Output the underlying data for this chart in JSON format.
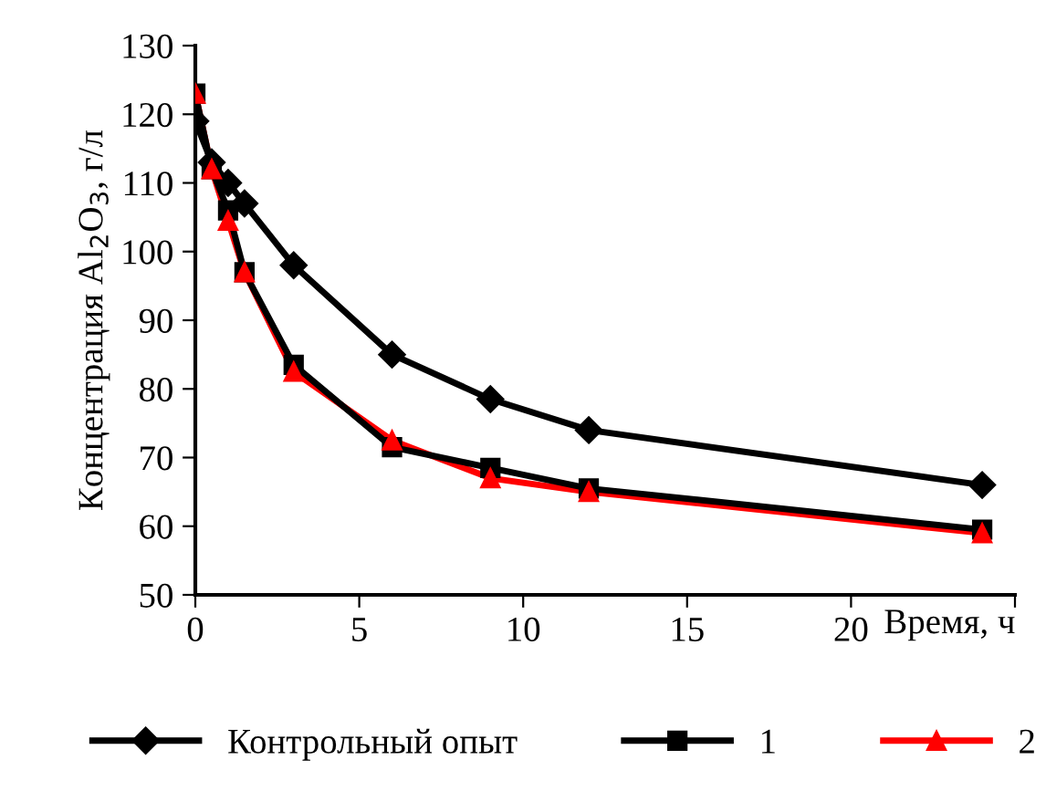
{
  "chart_data": {
    "type": "line",
    "ylabel": "Концентрация Al$_{2}$O$_{3}$, г/л",
    "xlabel": "Время, ч",
    "x": [
      0,
      0.5,
      1,
      1.5,
      3,
      6,
      9,
      12,
      24
    ],
    "series": [
      {
        "name": "Контрольный опыт",
        "color": "#000000",
        "marker": "diamond",
        "values": [
          119,
          113,
          110,
          107,
          98,
          85,
          78.5,
          74,
          66
        ]
      },
      {
        "name": "1",
        "color": "#000000",
        "marker": "square",
        "values": [
          123,
          112,
          106,
          97,
          83.5,
          71.5,
          68.5,
          65.5,
          59.5
        ]
      },
      {
        "name": "2",
        "color": "#ff0000",
        "marker": "triangle",
        "values": [
          123,
          112,
          104.5,
          97,
          82.5,
          72.5,
          67,
          65,
          59
        ]
      }
    ],
    "xlim": [
      0,
      25
    ],
    "xticks": [
      0,
      5,
      10,
      15,
      20,
      {
        "value": 25,
        "label": null
      }
    ],
    "ylim": [
      50,
      130
    ],
    "yticks": [
      50,
      60,
      70,
      80,
      90,
      100,
      110,
      120,
      130
    ],
    "grid": false,
    "legend": "bottom"
  }
}
